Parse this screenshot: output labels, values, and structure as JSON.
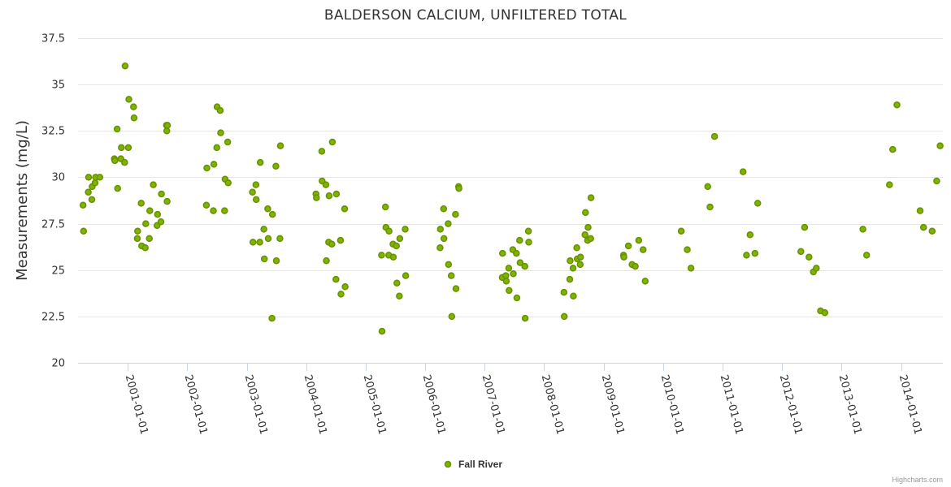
{
  "chart_data": {
    "type": "scatter",
    "title": "BALDERSON CALCIUM, UNFILTERED TOTAL",
    "ylabel": "Measurements (mg/L)",
    "xlabel": "",
    "ylim": [
      20,
      37.5
    ],
    "y_ticks": [
      "20",
      "22.5",
      "25",
      "27.5",
      "30",
      "32.5",
      "35",
      "37.5"
    ],
    "y_tick_values": [
      20,
      22.5,
      25,
      27.5,
      30,
      32.5,
      35,
      37.5
    ],
    "xlim": [
      "2000-03-01",
      "2014-09-15"
    ],
    "x_ticks": [
      "2001-01-01",
      "2002-01-01",
      "2003-01-01",
      "2004-01-01",
      "2005-01-01",
      "2006-01-01",
      "2007-01-01",
      "2008-01-01",
      "2009-01-01",
      "2010-01-01",
      "2011-01-01",
      "2012-01-01",
      "2013-01-01",
      "2014-01-01"
    ],
    "grid": true,
    "legend_position": "bottom-center",
    "series": [
      {
        "name": "Fall River",
        "color": "#7cb500",
        "edge_color": "#6a8f00",
        "points": [
          [
            "2000-04-01",
            28.5
          ],
          [
            "2000-04-04",
            27.1
          ],
          [
            "2000-05-03",
            29.2
          ],
          [
            "2000-05-05",
            30.0
          ],
          [
            "2000-05-25",
            28.8
          ],
          [
            "2000-05-27",
            29.5
          ],
          [
            "2000-06-14",
            29.7
          ],
          [
            "2000-06-17",
            30.0
          ],
          [
            "2000-07-13",
            30.0
          ],
          [
            "2000-10-10",
            31.0
          ],
          [
            "2000-10-13",
            30.9
          ],
          [
            "2000-10-27",
            32.6
          ],
          [
            "2000-10-30",
            29.4
          ],
          [
            "2000-11-19",
            31.0
          ],
          [
            "2000-11-22",
            31.6
          ],
          [
            "2000-12-12",
            30.8
          ],
          [
            "2000-12-15",
            36.0
          ],
          [
            "2001-01-04",
            31.6
          ],
          [
            "2001-01-07",
            34.2
          ],
          [
            "2001-02-05",
            33.8
          ],
          [
            "2001-02-08",
            33.2
          ],
          [
            "2001-02-28",
            26.7
          ],
          [
            "2001-03-02",
            27.1
          ],
          [
            "2001-03-24",
            28.6
          ],
          [
            "2001-03-27",
            26.3
          ],
          [
            "2001-04-18",
            26.2
          ],
          [
            "2001-04-21",
            27.5
          ],
          [
            "2001-05-13",
            26.7
          ],
          [
            "2001-05-16",
            28.2
          ],
          [
            "2001-06-06",
            29.6
          ],
          [
            "2001-06-29",
            27.4
          ],
          [
            "2001-07-02",
            28.0
          ],
          [
            "2001-07-23",
            27.6
          ],
          [
            "2001-07-26",
            29.1
          ],
          [
            "2001-08-26",
            32.8
          ],
          [
            "2001-08-28",
            32.5
          ],
          [
            "2001-08-30",
            28.7
          ],
          [
            "2001-09-01",
            32.8
          ],
          [
            "2002-04-28",
            28.5
          ],
          [
            "2002-05-01",
            30.5
          ],
          [
            "2002-06-10",
            28.2
          ],
          [
            "2002-06-13",
            30.7
          ],
          [
            "2002-07-01",
            31.6
          ],
          [
            "2002-07-03",
            33.8
          ],
          [
            "2002-07-22",
            33.6
          ],
          [
            "2002-07-25",
            32.4
          ],
          [
            "2002-08-18",
            28.2
          ],
          [
            "2002-08-21",
            29.9
          ],
          [
            "2002-09-06",
            31.9
          ],
          [
            "2002-09-09",
            29.7
          ],
          [
            "2003-02-05",
            29.2
          ],
          [
            "2003-02-08",
            26.5
          ],
          [
            "2003-02-26",
            29.6
          ],
          [
            "2003-02-28",
            28.8
          ],
          [
            "2003-03-22",
            26.5
          ],
          [
            "2003-03-25",
            30.8
          ],
          [
            "2003-04-16",
            27.2
          ],
          [
            "2003-04-19",
            25.6
          ],
          [
            "2003-05-10",
            28.3
          ],
          [
            "2003-05-13",
            26.7
          ],
          [
            "2003-06-05",
            22.4
          ],
          [
            "2003-06-08",
            28.0
          ],
          [
            "2003-06-29",
            30.6
          ],
          [
            "2003-07-02",
            25.5
          ],
          [
            "2003-07-24",
            26.7
          ],
          [
            "2003-07-27",
            31.7
          ],
          [
            "2004-03-01",
            29.1
          ],
          [
            "2004-03-04",
            28.9
          ],
          [
            "2004-04-06",
            31.4
          ],
          [
            "2004-04-08",
            29.8
          ],
          [
            "2004-05-01",
            29.6
          ],
          [
            "2004-05-04",
            25.5
          ],
          [
            "2004-05-18",
            26.5
          ],
          [
            "2004-05-21",
            29.0
          ],
          [
            "2004-06-07",
            26.4
          ],
          [
            "2004-06-10",
            31.9
          ],
          [
            "2004-07-02",
            24.5
          ],
          [
            "2004-07-05",
            29.1
          ],
          [
            "2004-07-30",
            26.6
          ],
          [
            "2004-08-02",
            23.7
          ],
          [
            "2004-08-24",
            28.3
          ],
          [
            "2004-08-27",
            24.1
          ],
          [
            "2005-04-08",
            25.8
          ],
          [
            "2005-04-11",
            21.7
          ],
          [
            "2005-05-02",
            28.4
          ],
          [
            "2005-05-05",
            27.3
          ],
          [
            "2005-05-22",
            25.8
          ],
          [
            "2005-05-24",
            27.1
          ],
          [
            "2005-06-17",
            26.4
          ],
          [
            "2005-06-19",
            25.7
          ],
          [
            "2005-07-08",
            26.3
          ],
          [
            "2005-07-11",
            24.3
          ],
          [
            "2005-07-26",
            23.6
          ],
          [
            "2005-07-29",
            26.7
          ],
          [
            "2005-08-31",
            27.2
          ],
          [
            "2005-09-03",
            24.7
          ],
          [
            "2006-04-02",
            26.2
          ],
          [
            "2006-04-04",
            27.2
          ],
          [
            "2006-04-24",
            28.3
          ],
          [
            "2006-04-26",
            26.7
          ],
          [
            "2006-05-22",
            27.5
          ],
          [
            "2006-05-24",
            25.3
          ],
          [
            "2006-06-10",
            24.7
          ],
          [
            "2006-06-13",
            22.5
          ],
          [
            "2006-07-06",
            28.0
          ],
          [
            "2006-07-09",
            24.0
          ],
          [
            "2006-07-25",
            29.5
          ],
          [
            "2006-07-27",
            29.4
          ],
          [
            "2007-04-19",
            24.6
          ],
          [
            "2007-04-21",
            25.9
          ],
          [
            "2007-05-11",
            24.7
          ],
          [
            "2007-05-14",
            24.4
          ],
          [
            "2007-05-29",
            25.1
          ],
          [
            "2007-05-31",
            23.9
          ],
          [
            "2007-06-23",
            26.1
          ],
          [
            "2007-06-26",
            24.8
          ],
          [
            "2007-07-15",
            25.9
          ],
          [
            "2007-07-18",
            23.5
          ],
          [
            "2007-08-04",
            26.6
          ],
          [
            "2007-08-07",
            25.4
          ],
          [
            "2007-09-05",
            25.2
          ],
          [
            "2007-09-07",
            22.4
          ],
          [
            "2007-09-27",
            27.1
          ],
          [
            "2007-09-29",
            26.5
          ],
          [
            "2008-05-02",
            23.8
          ],
          [
            "2008-05-04",
            22.5
          ],
          [
            "2008-06-07",
            24.5
          ],
          [
            "2008-06-09",
            25.5
          ],
          [
            "2008-06-27",
            25.1
          ],
          [
            "2008-06-29",
            23.6
          ],
          [
            "2008-07-20",
            26.2
          ],
          [
            "2008-07-23",
            25.6
          ],
          [
            "2008-08-10",
            25.3
          ],
          [
            "2008-08-12",
            25.7
          ],
          [
            "2008-09-08",
            26.9
          ],
          [
            "2008-09-11",
            28.1
          ],
          [
            "2008-09-24",
            26.6
          ],
          [
            "2008-09-27",
            27.3
          ],
          [
            "2008-10-13",
            26.7
          ],
          [
            "2008-10-15",
            28.9
          ],
          [
            "2009-05-03",
            25.8
          ],
          [
            "2009-05-05",
            25.7
          ],
          [
            "2009-06-02",
            26.3
          ],
          [
            "2009-06-24",
            25.3
          ],
          [
            "2009-07-14",
            25.2
          ],
          [
            "2009-08-04",
            26.6
          ],
          [
            "2009-08-31",
            26.1
          ],
          [
            "2009-09-13",
            24.4
          ],
          [
            "2010-04-22",
            27.1
          ],
          [
            "2010-05-29",
            26.1
          ],
          [
            "2010-06-21",
            25.1
          ],
          [
            "2010-10-02",
            29.5
          ],
          [
            "2010-10-16",
            28.4
          ],
          [
            "2010-11-13",
            32.2
          ],
          [
            "2011-05-07",
            30.3
          ],
          [
            "2011-05-28",
            25.8
          ],
          [
            "2011-06-19",
            26.9
          ],
          [
            "2011-07-19",
            25.9
          ],
          [
            "2011-08-05",
            28.6
          ],
          [
            "2012-04-26",
            26.0
          ],
          [
            "2012-05-19",
            27.3
          ],
          [
            "2012-06-15",
            25.7
          ],
          [
            "2012-07-12",
            24.9
          ],
          [
            "2012-07-30",
            25.1
          ],
          [
            "2012-08-25",
            22.8
          ],
          [
            "2012-09-20",
            22.7
          ],
          [
            "2013-05-12",
            27.2
          ],
          [
            "2013-06-04",
            25.8
          ],
          [
            "2013-10-22",
            29.6
          ],
          [
            "2013-11-11",
            31.5
          ],
          [
            "2013-12-07",
            33.9
          ],
          [
            "2014-04-28",
            28.2
          ],
          [
            "2014-05-19",
            27.3
          ],
          [
            "2014-07-11",
            27.1
          ],
          [
            "2014-08-08",
            29.8
          ],
          [
            "2014-08-29",
            31.7
          ]
        ]
      }
    ]
  },
  "credits": "Highcharts.com"
}
